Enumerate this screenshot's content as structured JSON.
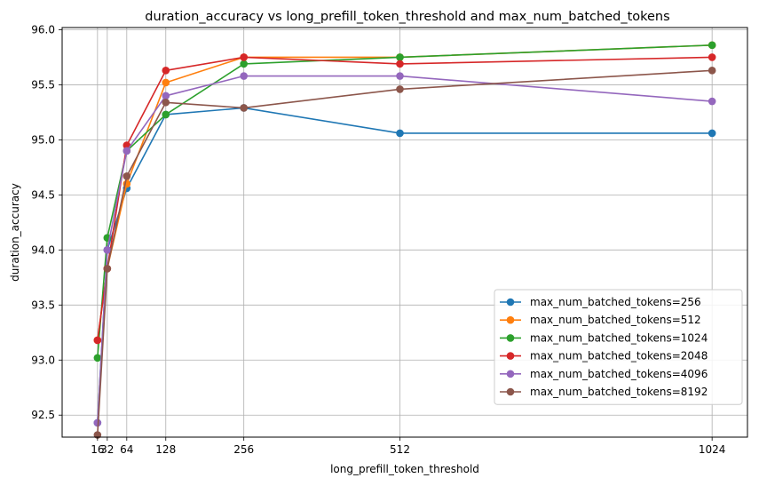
{
  "chart_data": {
    "type": "line",
    "title": "duration_accuracy vs long_prefill_token_threshold and max_num_batched_tokens",
    "xlabel": "long_prefill_token_threshold",
    "ylabel": "duration_accuracy",
    "x": [
      16,
      32,
      64,
      128,
      256,
      512,
      1024
    ],
    "xticks": [
      "16",
      "32",
      "64",
      "128",
      "256",
      "512",
      "1024"
    ],
    "xlim": [
      -42,
      1082
    ],
    "ylim": [
      92.3,
      96.02
    ],
    "yticks": [
      "92.5",
      "93.0",
      "93.5",
      "94.0",
      "94.5",
      "95.0",
      "95.5",
      "96.0"
    ],
    "grid": true,
    "legend_position": "lower-right",
    "series": [
      {
        "name": "max_num_batched_tokens=256",
        "color": "#1f77b4",
        "values": [
          92.43,
          94.0,
          94.56,
          95.23,
          95.29,
          95.06,
          95.06
        ]
      },
      {
        "name": "max_num_batched_tokens=512",
        "color": "#ff7f0e",
        "values": [
          93.18,
          93.83,
          94.6,
          95.52,
          95.75,
          95.75,
          95.86
        ]
      },
      {
        "name": "max_num_batched_tokens=1024",
        "color": "#2ca02c",
        "values": [
          93.02,
          94.11,
          94.9,
          95.23,
          95.69,
          95.75,
          95.86
        ]
      },
      {
        "name": "max_num_batched_tokens=2048",
        "color": "#d62728",
        "values": [
          93.18,
          93.83,
          94.95,
          95.63,
          95.75,
          95.69,
          95.75
        ]
      },
      {
        "name": "max_num_batched_tokens=4096",
        "color": "#9467bd",
        "values": [
          92.43,
          94.0,
          94.9,
          95.4,
          95.58,
          95.58,
          95.35
        ]
      },
      {
        "name": "max_num_batched_tokens=8192",
        "color": "#8c564b",
        "values": [
          92.32,
          93.83,
          94.67,
          95.34,
          95.29,
          95.46,
          95.63
        ]
      }
    ]
  }
}
